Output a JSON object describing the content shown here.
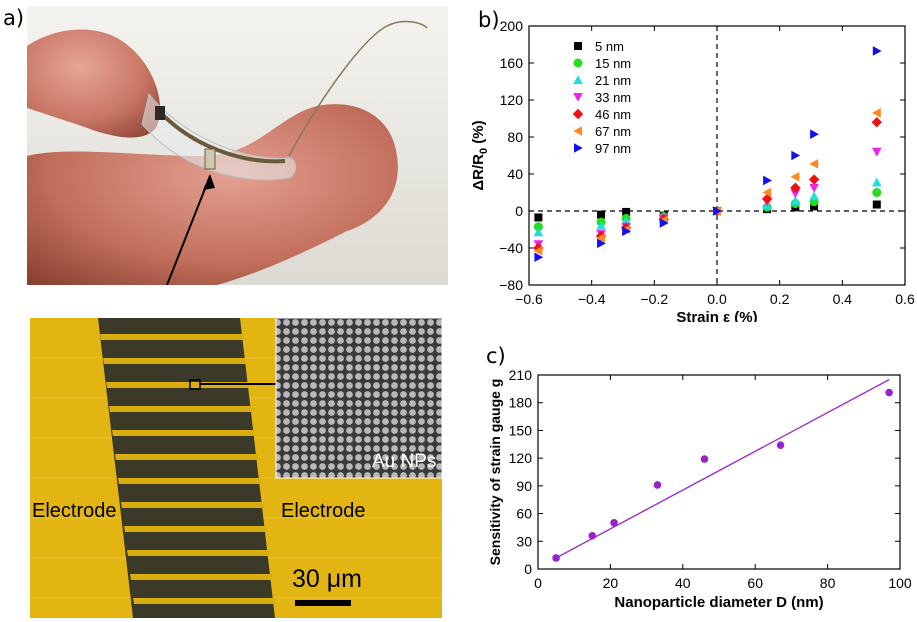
{
  "labels": {
    "a": "a)",
    "b": "b)",
    "c": "c)"
  },
  "micrograph": {
    "electrode_left": "Electrode",
    "electrode_right": "Electrode",
    "inset_label": "Au NPs",
    "scale_bar": "30 μm"
  },
  "chart_data": [
    {
      "type": "scatter",
      "title": "",
      "xlabel": "Strain ε (%)",
      "ylabel": "ΔR/R0 (%)",
      "ylabel_main": "ΔR/R",
      "ylabel_sub": "0",
      "ylabel_tail": " (%)",
      "xlim": [
        -0.6,
        0.6
      ],
      "ylim": [
        -80,
        200
      ],
      "xticks": [
        -0.6,
        -0.4,
        -0.2,
        0.0,
        0.2,
        0.4,
        0.6
      ],
      "xtick_labels": [
        "−0.6",
        "−0.4",
        "−0.2",
        "0.0",
        "0.2",
        "0.4",
        "0.6"
      ],
      "yticks": [
        -80,
        -40,
        0,
        40,
        80,
        120,
        160,
        200
      ],
      "grid": false,
      "legend": "top-left",
      "reference_lines": {
        "x": 0,
        "y": 0
      },
      "series": [
        {
          "name": "5 nm",
          "marker": "square",
          "color": "#000000",
          "x": [
            -0.57,
            -0.37,
            -0.29,
            -0.17,
            0.0,
            0.16,
            0.25,
            0.31,
            0.51
          ],
          "y": [
            -7,
            -4,
            -1,
            -5,
            0,
            2,
            4,
            5,
            7
          ]
        },
        {
          "name": "15 nm",
          "marker": "circle",
          "color": "#22dd22",
          "x": [
            -0.57,
            -0.37,
            -0.29,
            -0.17,
            0.0,
            0.16,
            0.25,
            0.31,
            0.51
          ],
          "y": [
            -17,
            -12,
            -8,
            -6,
            0,
            4,
            8,
            10,
            20
          ]
        },
        {
          "name": "21 nm",
          "marker": "triangle-up",
          "color": "#22dddd",
          "x": [
            -0.57,
            -0.37,
            -0.29,
            -0.17,
            0.0,
            0.16,
            0.25,
            0.31,
            0.51
          ],
          "y": [
            -23,
            -16,
            -11,
            -8,
            0,
            6,
            11,
            16,
            31
          ]
        },
        {
          "name": "33 nm",
          "marker": "triangle-down",
          "color": "#ee22ee",
          "x": [
            -0.57,
            -0.37,
            -0.29,
            -0.17,
            0.0,
            0.16,
            0.25,
            0.31,
            0.51
          ],
          "y": [
            -36,
            -25,
            -17,
            -8,
            0,
            10,
            19,
            25,
            64
          ]
        },
        {
          "name": "46 nm",
          "marker": "diamond",
          "color": "#ee1111",
          "x": [
            -0.57,
            -0.37,
            -0.29,
            -0.17,
            0.0,
            0.16,
            0.25,
            0.31,
            0.51
          ],
          "y": [
            -40,
            -27,
            -18,
            -9,
            0,
            13,
            25,
            34,
            96
          ]
        },
        {
          "name": "67 nm",
          "marker": "triangle-left",
          "color": "#ff8822",
          "x": [
            -0.57,
            -0.37,
            -0.29,
            -0.17,
            0.0,
            0.16,
            0.25,
            0.31,
            0.51
          ],
          "y": [
            -43,
            -29,
            -20,
            -10,
            0,
            20,
            37,
            51,
            106
          ]
        },
        {
          "name": "97 nm",
          "marker": "triangle-right",
          "color": "#1111ee",
          "x": [
            -0.57,
            -0.37,
            -0.29,
            -0.17,
            0.0,
            0.16,
            0.25,
            0.31,
            0.51
          ],
          "y": [
            -50,
            -35,
            -22,
            -13,
            0,
            33,
            60,
            83,
            173
          ]
        }
      ]
    },
    {
      "type": "scatter",
      "title": "",
      "xlabel": "Nanoparticle diameter D (nm)",
      "ylabel": "Sensitivity of strain gauge g",
      "xlim": [
        0,
        100
      ],
      "ylim": [
        0,
        210
      ],
      "xticks": [
        0,
        20,
        40,
        60,
        80,
        100
      ],
      "yticks": [
        0,
        30,
        60,
        90,
        120,
        150,
        180,
        210
      ],
      "grid": false,
      "color": "#9922cc",
      "x": [
        5,
        15,
        21,
        33,
        46,
        67,
        97
      ],
      "y": [
        12,
        36,
        50,
        91,
        119,
        134,
        191
      ],
      "fit_line": {
        "x": [
          5,
          97
        ],
        "y": [
          12,
          205
        ]
      }
    }
  ]
}
